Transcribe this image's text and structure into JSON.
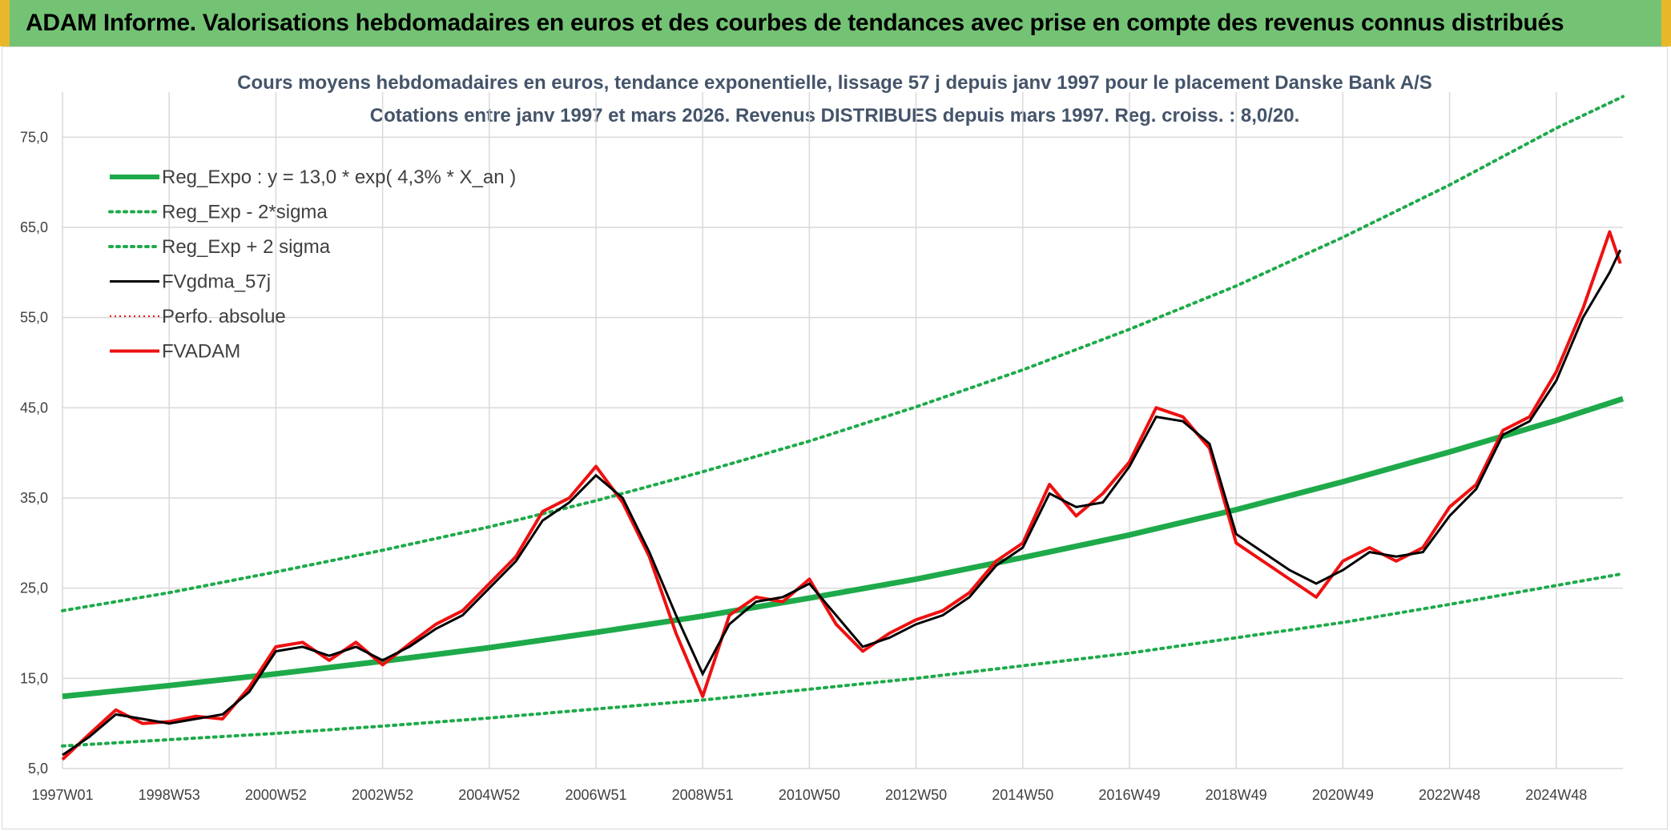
{
  "banner": {
    "title": "ADAM Informe. Valorisations hebdomadaires en euros et des courbes de tendances avec prise en compte des revenus connus distribués"
  },
  "colors": {
    "banner_green": "#74c375",
    "banner_border": "#e8b82a",
    "trend": "#1eaa4a",
    "band": "#1eaa4a",
    "fvgdma": "#000000",
    "fvadam": "#ee1111",
    "perfo": "#ee1111",
    "grid": "#d9d9d9"
  },
  "chart_data": {
    "type": "line",
    "title": "Cours moyens hebdomadaires en euros, tendance exponentielle, lissage 57 j depuis janv 1997 pour le placement Danske Bank A/S",
    "subtitle": "Cotations entre janv 1997 et mars 2026. Revenus DISTRIBUES depuis mars 1997. Reg. croiss. : 8,0/20.",
    "xlabel": "",
    "ylabel": "",
    "ylim": [
      5,
      80
    ],
    "xlim": [
      1997.0,
      2026.25
    ],
    "yticks": [
      "5,0",
      "15,0",
      "25,0",
      "35,0",
      "45,0",
      "55,0",
      "65,0",
      "75,0"
    ],
    "xticks": [
      {
        "label": "1997W01",
        "x": 1997.0
      },
      {
        "label": "1998W53",
        "x": 1999.0
      },
      {
        "label": "2000W52",
        "x": 2001.0
      },
      {
        "label": "2002W52",
        "x": 2003.0
      },
      {
        "label": "2004W52",
        "x": 2005.0
      },
      {
        "label": "2006W51",
        "x": 2007.0
      },
      {
        "label": "2008W51",
        "x": 2009.0
      },
      {
        "label": "2010W50",
        "x": 2011.0
      },
      {
        "label": "2012W50",
        "x": 2013.0
      },
      {
        "label": "2014W50",
        "x": 2015.0
      },
      {
        "label": "2016W49",
        "x": 2017.0
      },
      {
        "label": "2018W49",
        "x": 2019.0
      },
      {
        "label": "2020W49",
        "x": 2021.0
      },
      {
        "label": "2022W48",
        "x": 2023.0
      },
      {
        "label": "2024W48",
        "x": 2025.0
      }
    ],
    "grid": true,
    "legend_position": "top-left",
    "series": [
      {
        "name": "Reg_Expo : y = 13,0 * exp( 4,3% *  X_an )",
        "style": "solid-thick",
        "x": [
          1997.0,
          1999.0,
          2001.0,
          2003.0,
          2005.0,
          2007.0,
          2009.0,
          2011.0,
          2013.0,
          2015.0,
          2017.0,
          2019.0,
          2021.0,
          2023.0,
          2025.0,
          2026.25
        ],
        "y": [
          13.0,
          14.2,
          15.5,
          16.9,
          18.4,
          20.1,
          21.9,
          23.9,
          26.0,
          28.4,
          30.9,
          33.7,
          36.8,
          40.1,
          43.6,
          46.0
        ]
      },
      {
        "name": "Reg_Exp - 2*sigma",
        "style": "dotted",
        "x": [
          1997.0,
          1999.0,
          2001.0,
          2003.0,
          2005.0,
          2007.0,
          2009.0,
          2011.0,
          2013.0,
          2015.0,
          2017.0,
          2019.0,
          2021.0,
          2023.0,
          2025.0,
          2026.25
        ],
        "y": [
          7.5,
          8.2,
          8.9,
          9.7,
          10.6,
          11.6,
          12.6,
          13.8,
          15.0,
          16.4,
          17.8,
          19.5,
          21.2,
          23.2,
          25.3,
          26.6
        ]
      },
      {
        "name": "Reg_Exp + 2 sigma",
        "style": "dotted",
        "x": [
          1997.0,
          1999.0,
          2001.0,
          2003.0,
          2005.0,
          2007.0,
          2009.0,
          2011.0,
          2013.0,
          2015.0,
          2017.0,
          2019.0,
          2021.0,
          2023.0,
          2025.0,
          2026.25
        ],
        "y": [
          22.5,
          24.5,
          26.8,
          29.2,
          31.8,
          34.7,
          37.9,
          41.3,
          45.1,
          49.2,
          53.7,
          58.5,
          63.9,
          69.7,
          76.0,
          79.5
        ]
      },
      {
        "name": "FVgdma_57j",
        "style": "solid-thin",
        "x": [
          1997.0,
          1997.5,
          1998.0,
          1998.5,
          1999.0,
          1999.5,
          2000.0,
          2000.5,
          2001.0,
          2001.5,
          2002.0,
          2002.5,
          2003.0,
          2003.5,
          2004.0,
          2004.5,
          2005.0,
          2005.5,
          2006.0,
          2006.5,
          2007.0,
          2007.5,
          2008.0,
          2008.5,
          2009.0,
          2009.5,
          2010.0,
          2010.5,
          2011.0,
          2011.5,
          2012.0,
          2012.5,
          2013.0,
          2013.5,
          2014.0,
          2014.5,
          2015.0,
          2015.5,
          2016.0,
          2016.5,
          2017.0,
          2017.5,
          2018.0,
          2018.5,
          2019.0,
          2019.5,
          2020.0,
          2020.5,
          2021.0,
          2021.5,
          2022.0,
          2022.5,
          2023.0,
          2023.5,
          2024.0,
          2024.5,
          2025.0,
          2025.5,
          2026.0,
          2026.2
        ],
        "y": [
          6.5,
          8.5,
          11.0,
          10.5,
          10.0,
          10.5,
          11.0,
          13.5,
          18.0,
          18.5,
          17.5,
          18.5,
          17.0,
          18.5,
          20.5,
          22.0,
          25.0,
          28.0,
          32.5,
          34.5,
          37.5,
          35.0,
          29.0,
          22.0,
          15.5,
          21.0,
          23.5,
          24.0,
          25.5,
          22.0,
          18.5,
          19.5,
          21.0,
          22.0,
          24.0,
          27.5,
          29.5,
          35.5,
          34.0,
          34.5,
          38.5,
          44.0,
          43.5,
          41.0,
          31.0,
          29.0,
          27.0,
          25.5,
          27.0,
          29.0,
          28.5,
          29.0,
          33.0,
          36.0,
          42.0,
          43.5,
          48.0,
          55.0,
          60.0,
          62.5
        ]
      },
      {
        "name": "Perfo. absolue",
        "style": "dotted",
        "x": [],
        "y": []
      },
      {
        "name": "FVADAM",
        "style": "solid-thick",
        "x": [
          1997.0,
          1997.5,
          1998.0,
          1998.5,
          1999.0,
          1999.5,
          2000.0,
          2000.5,
          2001.0,
          2001.5,
          2002.0,
          2002.5,
          2003.0,
          2003.5,
          2004.0,
          2004.5,
          2005.0,
          2005.5,
          2006.0,
          2006.5,
          2007.0,
          2007.5,
          2008.0,
          2008.5,
          2009.0,
          2009.5,
          2010.0,
          2010.5,
          2011.0,
          2011.5,
          2012.0,
          2012.5,
          2013.0,
          2013.5,
          2014.0,
          2014.5,
          2015.0,
          2015.5,
          2016.0,
          2016.5,
          2017.0,
          2017.5,
          2018.0,
          2018.5,
          2019.0,
          2019.5,
          2020.0,
          2020.5,
          2021.0,
          2021.5,
          2022.0,
          2022.5,
          2023.0,
          2023.5,
          2024.0,
          2024.5,
          2025.0,
          2025.5,
          2026.0,
          2026.2
        ],
        "y": [
          6.0,
          8.8,
          11.5,
          10.0,
          10.2,
          10.8,
          10.5,
          14.0,
          18.5,
          19.0,
          17.0,
          19.0,
          16.5,
          18.8,
          21.0,
          22.5,
          25.5,
          28.5,
          33.5,
          35.0,
          38.5,
          34.5,
          28.5,
          20.0,
          13.0,
          22.0,
          24.0,
          23.5,
          26.0,
          21.0,
          18.0,
          20.0,
          21.5,
          22.5,
          24.5,
          28.0,
          30.0,
          36.5,
          33.0,
          35.5,
          39.0,
          45.0,
          44.0,
          40.5,
          30.0,
          28.0,
          26.0,
          24.0,
          28.0,
          29.5,
          28.0,
          29.5,
          34.0,
          36.5,
          42.5,
          44.0,
          49.0,
          56.0,
          64.5,
          61.0
        ]
      }
    ]
  }
}
